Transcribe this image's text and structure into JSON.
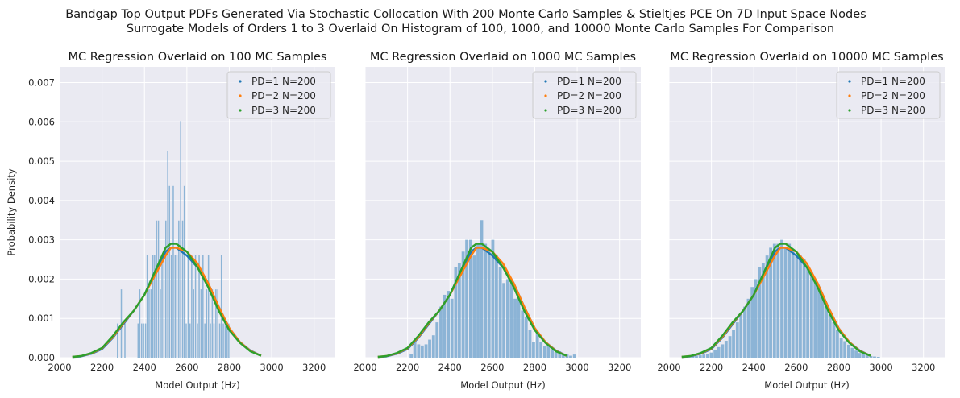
{
  "figure": {
    "suptitle_line1": "Bandgap Top Output PDFs Generated Via Stochastic Collocation With 200 Monte Carlo Samples & Stieltjes PCE On 7D Input Space Nodes",
    "suptitle_line2": "Surrogate Models of Orders 1 to 3 Overlaid On Histogram of 100, 1000, and 10000 Monte Carlo Samples For Comparison",
    "colors": {
      "background": "#eaeaf2",
      "grid": "#ffffff",
      "histogram": "#82aed3",
      "pd1": "#1f77b4",
      "pd2": "#ff7f0e",
      "pd3": "#2ca02c"
    }
  },
  "chart_data": [
    {
      "type": "bar",
      "title": "MC Regression Overlaid on 100 MC Samples",
      "xlabel": "Model Output (Hz)",
      "ylabel": "Probability Density",
      "xlim": [
        2000,
        3300
      ],
      "ylim": [
        0,
        0.0074
      ],
      "xticks": [
        "2000",
        "2200",
        "2400",
        "2600",
        "2800",
        "3000",
        "3200"
      ],
      "yticks": [
        "0.000",
        "0.001",
        "0.002",
        "0.003",
        "0.004",
        "0.005",
        "0.006",
        "0.007"
      ],
      "grid": true,
      "legend_position": "top-right",
      "legend": [
        "PD=1 N=200",
        "PD=2 N=200",
        "PD=3 N=200"
      ],
      "histogram": {
        "bin_width": 8.75,
        "bin_left_edges": [
          2270,
          2288,
          2305,
          2367,
          2375,
          2384,
          2393,
          2402,
          2410,
          2419,
          2428,
          2437,
          2445,
          2454,
          2463,
          2472,
          2480,
          2489,
          2498,
          2507,
          2515,
          2524,
          2533,
          2542,
          2550,
          2559,
          2568,
          2577,
          2585,
          2594,
          2603,
          2612,
          2620,
          2629,
          2638,
          2647,
          2655,
          2664,
          2673,
          2682,
          2690,
          2699,
          2708,
          2717,
          2725,
          2734,
          2743,
          2752,
          2760,
          2769,
          2778,
          2787,
          2795
        ],
        "densities": [
          0.00087,
          0.00174,
          0.00087,
          0.00087,
          0.00174,
          0.00087,
          0.00087,
          0.00087,
          0.00262,
          0.00174,
          0.00174,
          0.00262,
          0.00262,
          0.00349,
          0.00349,
          0.00174,
          0.00262,
          0.00262,
          0.00349,
          0.00526,
          0.00437,
          0.00262,
          0.00437,
          0.00262,
          0.00262,
          0.00349,
          0.00602,
          0.00349,
          0.00437,
          0.00087,
          0.00262,
          0.00087,
          0.00262,
          0.00174,
          0.00262,
          0.00087,
          0.00262,
          0.00174,
          0.00262,
          0.00087,
          0.00174,
          0.00262,
          0.00087,
          0.00174,
          0.00087,
          0.00174,
          0.00174,
          0.00087,
          0.00262,
          0.00087,
          0.00087,
          0.00087,
          0.00087
        ]
      },
      "series": [
        {
          "name": "PD=1 N=200",
          "x": [
            2060,
            2100,
            2150,
            2200,
            2250,
            2300,
            2350,
            2400,
            2450,
            2500,
            2525,
            2550,
            2600,
            2650,
            2700,
            2750,
            2800,
            2850,
            2900,
            2950
          ],
          "y": [
            2e-05,
            3e-05,
            0.0001,
            0.00022,
            0.0005,
            0.00085,
            0.0012,
            0.0016,
            0.0022,
            0.0027,
            0.0028,
            0.0028,
            0.0026,
            0.0023,
            0.0019,
            0.0013,
            0.00075,
            0.0004,
            0.00018,
            5e-05
          ]
        },
        {
          "name": "PD=2 N=200",
          "x": [
            2060,
            2100,
            2150,
            2200,
            2250,
            2300,
            2350,
            2400,
            2450,
            2500,
            2525,
            2550,
            2600,
            2650,
            2700,
            2750,
            2800,
            2850,
            2900,
            2950
          ],
          "y": [
            2e-05,
            4e-05,
            0.00011,
            0.00024,
            0.00052,
            0.00088,
            0.0012,
            0.0016,
            0.0021,
            0.0026,
            0.0028,
            0.0028,
            0.0027,
            0.0024,
            0.0019,
            0.0013,
            0.00075,
            0.0004,
            0.00017,
            5e-05
          ]
        },
        {
          "name": "PD=3 N=200",
          "x": [
            2060,
            2100,
            2150,
            2200,
            2250,
            2300,
            2350,
            2400,
            2450,
            2500,
            2525,
            2550,
            2600,
            2650,
            2700,
            2750,
            2800,
            2850,
            2900,
            2950
          ],
          "y": [
            2e-05,
            4e-05,
            0.00012,
            0.00025,
            0.00055,
            0.0009,
            0.0012,
            0.0016,
            0.0022,
            0.0028,
            0.0029,
            0.0029,
            0.0027,
            0.0023,
            0.0018,
            0.0012,
            0.0007,
            0.00038,
            0.00016,
            5e-05
          ]
        }
      ]
    },
    {
      "type": "bar",
      "title": "MC Regression Overlaid on 1000 MC Samples",
      "xlabel": "Model Output (Hz)",
      "ylabel": "",
      "xlim": [
        2000,
        3300
      ],
      "ylim": [
        0,
        0.0074
      ],
      "xticks": [
        "2000",
        "2200",
        "2400",
        "2600",
        "2800",
        "3000",
        "3200"
      ],
      "yticks": [],
      "grid": true,
      "legend_position": "top-right",
      "legend": [
        "PD=1 N=200",
        "PD=2 N=200",
        "PD=3 N=200"
      ],
      "histogram": {
        "bin_width": 17.5,
        "bin_left_edges": [
          2210,
          2227,
          2245,
          2262,
          2280,
          2297,
          2315,
          2332,
          2350,
          2367,
          2385,
          2402,
          2420,
          2437,
          2455,
          2472,
          2490,
          2507,
          2525,
          2542,
          2560,
          2577,
          2595,
          2612,
          2630,
          2647,
          2665,
          2682,
          2700,
          2717,
          2735,
          2752,
          2770,
          2787,
          2805,
          2822,
          2840,
          2857,
          2875,
          2892,
          2910,
          2927,
          2945,
          2962,
          2980
        ],
        "densities": [
          0.0001,
          0.00043,
          0.00034,
          0.00031,
          0.00034,
          0.00046,
          0.00057,
          0.0009,
          0.0013,
          0.0016,
          0.0017,
          0.0015,
          0.0023,
          0.0024,
          0.0027,
          0.003,
          0.003,
          0.0026,
          0.0029,
          0.0035,
          0.0029,
          0.0027,
          0.003,
          0.0026,
          0.0023,
          0.0019,
          0.002,
          0.0019,
          0.0015,
          0.0016,
          0.0012,
          0.00103,
          0.0007,
          0.0004,
          0.00065,
          0.0004,
          0.0003,
          0.0003,
          0.0002,
          0.00014,
          0.00016,
          0.0001,
          8e-05,
          5e-05,
          8e-05
        ]
      },
      "series": [
        {
          "name": "PD=1 N=200",
          "x": [
            2060,
            2100,
            2150,
            2200,
            2250,
            2300,
            2350,
            2400,
            2450,
            2500,
            2525,
            2550,
            2600,
            2650,
            2700,
            2750,
            2800,
            2850,
            2900,
            2950
          ],
          "y": [
            2e-05,
            3e-05,
            0.0001,
            0.00022,
            0.0005,
            0.00085,
            0.0012,
            0.0016,
            0.0022,
            0.0027,
            0.0028,
            0.0028,
            0.0026,
            0.0023,
            0.0019,
            0.0013,
            0.00075,
            0.0004,
            0.00018,
            5e-05
          ]
        },
        {
          "name": "PD=2 N=200",
          "x": [
            2060,
            2100,
            2150,
            2200,
            2250,
            2300,
            2350,
            2400,
            2450,
            2500,
            2525,
            2550,
            2600,
            2650,
            2700,
            2750,
            2800,
            2850,
            2900,
            2950
          ],
          "y": [
            2e-05,
            4e-05,
            0.00011,
            0.00024,
            0.00052,
            0.00088,
            0.0012,
            0.0016,
            0.0021,
            0.0026,
            0.0028,
            0.0028,
            0.0027,
            0.0024,
            0.0019,
            0.0013,
            0.00075,
            0.0004,
            0.00017,
            5e-05
          ]
        },
        {
          "name": "PD=3 N=200",
          "x": [
            2060,
            2100,
            2150,
            2200,
            2250,
            2300,
            2350,
            2400,
            2450,
            2500,
            2525,
            2550,
            2600,
            2650,
            2700,
            2750,
            2800,
            2850,
            2900,
            2950
          ],
          "y": [
            2e-05,
            4e-05,
            0.00012,
            0.00025,
            0.00055,
            0.0009,
            0.0012,
            0.0016,
            0.0022,
            0.0028,
            0.0029,
            0.0029,
            0.0027,
            0.0023,
            0.0018,
            0.0012,
            0.0007,
            0.00038,
            0.00016,
            5e-05
          ]
        }
      ]
    },
    {
      "type": "bar",
      "title": "MC Regression Overlaid on 10000 MC Samples",
      "xlabel": "Model Output (Hz)",
      "ylabel": "",
      "xlim": [
        2000,
        3300
      ],
      "ylim": [
        0,
        0.0074
      ],
      "xticks": [
        "2000",
        "2200",
        "2400",
        "2600",
        "2800",
        "3000",
        "3200"
      ],
      "yticks": [],
      "grid": true,
      "legend_position": "top-right",
      "legend": [
        "PD=1 N=200",
        "PD=2 N=200",
        "PD=3 N=200"
      ],
      "histogram": {
        "bin_width": 17.5,
        "bin_left_edges": [
          2105,
          2122,
          2140,
          2157,
          2175,
          2192,
          2210,
          2227,
          2245,
          2262,
          2280,
          2297,
          2315,
          2332,
          2350,
          2367,
          2385,
          2402,
          2420,
          2437,
          2455,
          2472,
          2490,
          2507,
          2525,
          2542,
          2560,
          2577,
          2595,
          2612,
          2630,
          2647,
          2665,
          2682,
          2700,
          2717,
          2735,
          2752,
          2770,
          2787,
          2805,
          2822,
          2840,
          2857,
          2875,
          2892,
          2910,
          2927,
          2945,
          2962,
          2980
        ],
        "densities": [
          3e-05,
          4e-05,
          6e-05,
          8e-05,
          0.0001,
          0.00013,
          0.0002,
          0.00027,
          0.00034,
          0.00043,
          0.00055,
          0.0007,
          0.0009,
          0.0011,
          0.0013,
          0.0015,
          0.0018,
          0.002,
          0.0023,
          0.0024,
          0.0026,
          0.0028,
          0.0029,
          0.0029,
          0.003,
          0.0028,
          0.0029,
          0.0027,
          0.0026,
          0.0026,
          0.0025,
          0.0023,
          0.0022,
          0.002,
          0.0018,
          0.0016,
          0.0013,
          0.0011,
          0.0009,
          0.0007,
          0.0005,
          0.00042,
          0.00033,
          0.00025,
          0.00018,
          0.00012,
          0.0001,
          6e-05,
          4e-05,
          3e-05,
          2e-05
        ]
      },
      "series": [
        {
          "name": "PD=1 N=200",
          "x": [
            2060,
            2100,
            2150,
            2200,
            2250,
            2300,
            2350,
            2400,
            2450,
            2500,
            2525,
            2550,
            2600,
            2650,
            2700,
            2750,
            2800,
            2850,
            2900,
            2950
          ],
          "y": [
            2e-05,
            3e-05,
            0.0001,
            0.00022,
            0.0005,
            0.00085,
            0.0012,
            0.0016,
            0.0022,
            0.0027,
            0.0028,
            0.0028,
            0.0026,
            0.0023,
            0.0019,
            0.0013,
            0.00075,
            0.0004,
            0.00018,
            5e-05
          ]
        },
        {
          "name": "PD=2 N=200",
          "x": [
            2060,
            2100,
            2150,
            2200,
            2250,
            2300,
            2350,
            2400,
            2450,
            2500,
            2525,
            2550,
            2600,
            2650,
            2700,
            2750,
            2800,
            2850,
            2900,
            2950
          ],
          "y": [
            2e-05,
            4e-05,
            0.00011,
            0.00024,
            0.00052,
            0.00088,
            0.0012,
            0.0016,
            0.0021,
            0.0026,
            0.0028,
            0.0028,
            0.0027,
            0.0024,
            0.0019,
            0.0013,
            0.00075,
            0.0004,
            0.00017,
            5e-05
          ]
        },
        {
          "name": "PD=3 N=200",
          "x": [
            2060,
            2100,
            2150,
            2200,
            2250,
            2300,
            2350,
            2400,
            2450,
            2500,
            2525,
            2550,
            2600,
            2650,
            2700,
            2750,
            2800,
            2850,
            2900,
            2950
          ],
          "y": [
            2e-05,
            4e-05,
            0.00012,
            0.00025,
            0.00055,
            0.0009,
            0.0012,
            0.0016,
            0.0022,
            0.0028,
            0.0029,
            0.0029,
            0.0027,
            0.0023,
            0.0018,
            0.0012,
            0.0007,
            0.00038,
            0.00016,
            5e-05
          ]
        }
      ]
    }
  ]
}
